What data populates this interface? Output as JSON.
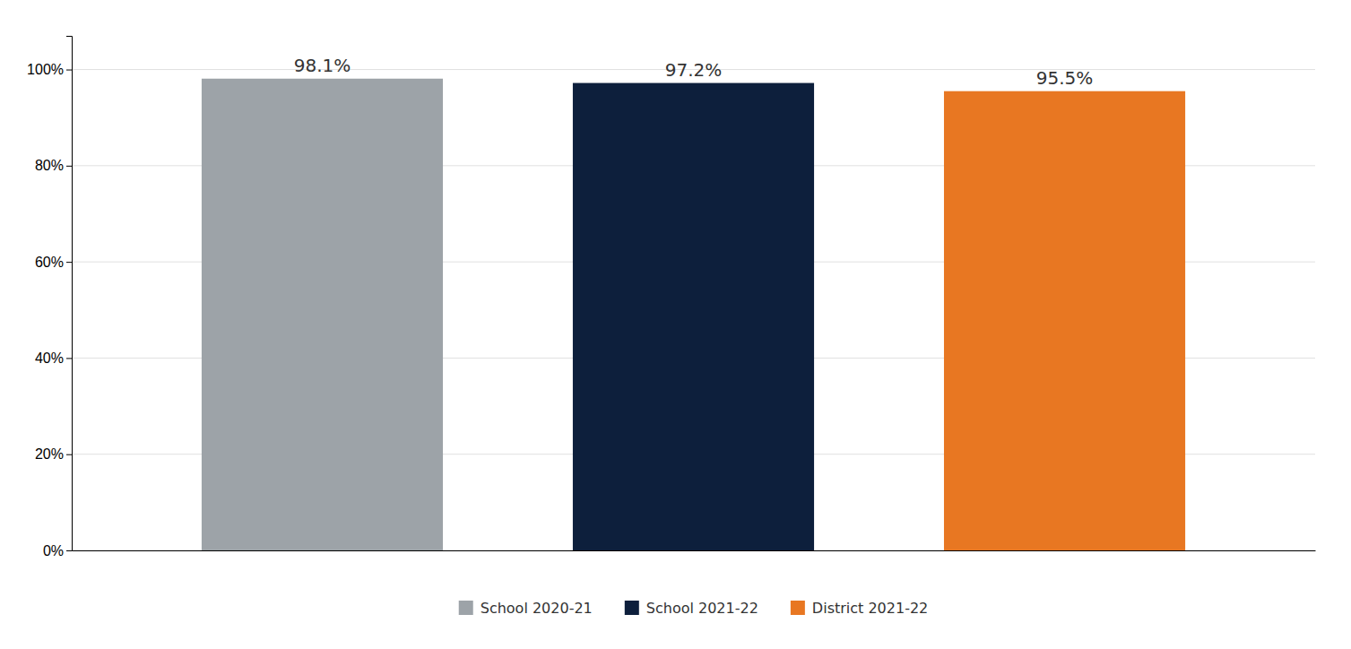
{
  "chart_data": {
    "type": "bar",
    "categories": [
      "School 2020-21",
      "School 2021-22",
      "District 2021-22"
    ],
    "values": [
      98.1,
      97.2,
      95.5
    ],
    "colors": [
      "#9da3a8",
      "#0d1f3c",
      "#e87722"
    ],
    "value_labels": [
      "98.1%",
      "97.2%",
      "95.5%"
    ],
    "data_labels": true,
    "ylim": [
      0,
      107
    ],
    "yticks": [
      {
        "value": 0,
        "label": "0%"
      },
      {
        "value": 20,
        "label": "20%"
      },
      {
        "value": 40,
        "label": "40%"
      },
      {
        "value": 60,
        "label": "60%"
      },
      {
        "value": 80,
        "label": "80%"
      },
      {
        "value": 100,
        "label": "100%"
      }
    ],
    "grid": true,
    "legend": "bottom",
    "tick_labels": "y"
  }
}
